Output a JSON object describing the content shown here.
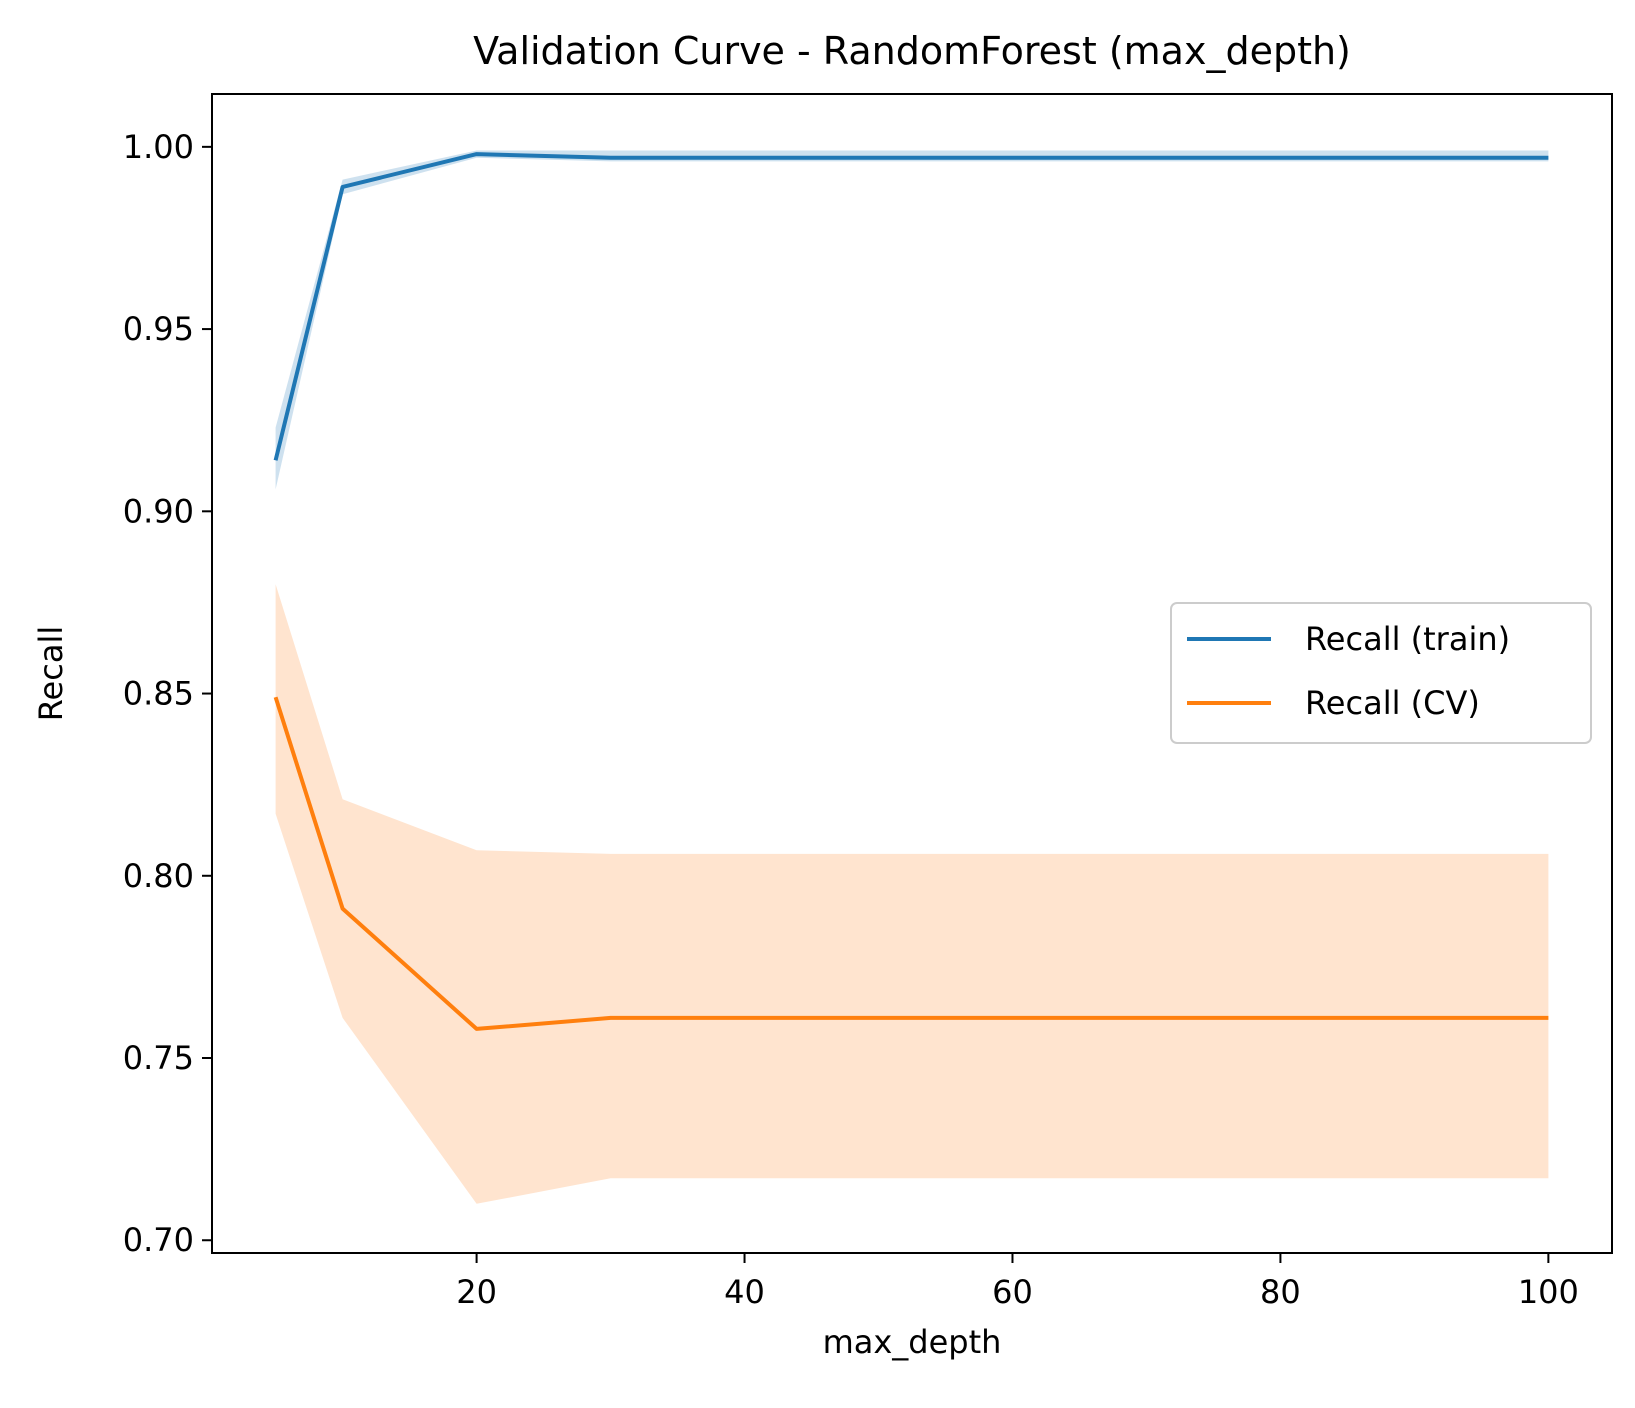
{
  "chart_data": {
    "type": "line",
    "title": "Validation Curve - RandomForest (max_depth)",
    "xlabel": "max_depth",
    "ylabel": "Recall",
    "xlim": [
      0.25,
      104.75
    ],
    "ylim": [
      0.6965,
      1.0145
    ],
    "xticks": [
      20,
      40,
      60,
      80,
      100
    ],
    "xtick_labels": [
      "20",
      "40",
      "60",
      "80",
      "100"
    ],
    "yticks": [
      0.7,
      0.75,
      0.8,
      0.85,
      0.9,
      0.95,
      1.0
    ],
    "ytick_labels": [
      "0.70",
      "0.75",
      "0.80",
      "0.85",
      "0.90",
      "0.95",
      "1.00"
    ],
    "x": [
      5,
      10,
      20,
      30,
      40,
      50,
      60,
      70,
      80,
      90,
      100
    ],
    "series": [
      {
        "name": "Recall (train)",
        "color": "#1f77b4",
        "band_color": "#1f77b4",
        "values": [
          0.914,
          0.989,
          0.998,
          0.997,
          0.997,
          0.997,
          0.997,
          0.997,
          0.997,
          0.997,
          0.997
        ],
        "upper": [
          0.923,
          0.991,
          0.999,
          0.999,
          0.999,
          0.999,
          0.999,
          0.999,
          0.999,
          0.999,
          0.999
        ],
        "lower": [
          0.906,
          0.987,
          0.997,
          0.996,
          0.996,
          0.996,
          0.996,
          0.996,
          0.996,
          0.996,
          0.996
        ]
      },
      {
        "name": "Recall (CV)",
        "color": "#ff7f0e",
        "band_color": "#ffe4cf",
        "values": [
          0.849,
          0.791,
          0.758,
          0.761,
          0.761,
          0.761,
          0.761,
          0.761,
          0.761,
          0.761,
          0.761
        ],
        "upper": [
          0.88,
          0.821,
          0.807,
          0.806,
          0.806,
          0.806,
          0.806,
          0.806,
          0.806,
          0.806,
          0.806
        ],
        "lower": [
          0.817,
          0.761,
          0.71,
          0.717,
          0.717,
          0.717,
          0.717,
          0.717,
          0.717,
          0.717,
          0.717
        ]
      }
    ],
    "legend": {
      "position": "center-right"
    },
    "grid": false
  }
}
